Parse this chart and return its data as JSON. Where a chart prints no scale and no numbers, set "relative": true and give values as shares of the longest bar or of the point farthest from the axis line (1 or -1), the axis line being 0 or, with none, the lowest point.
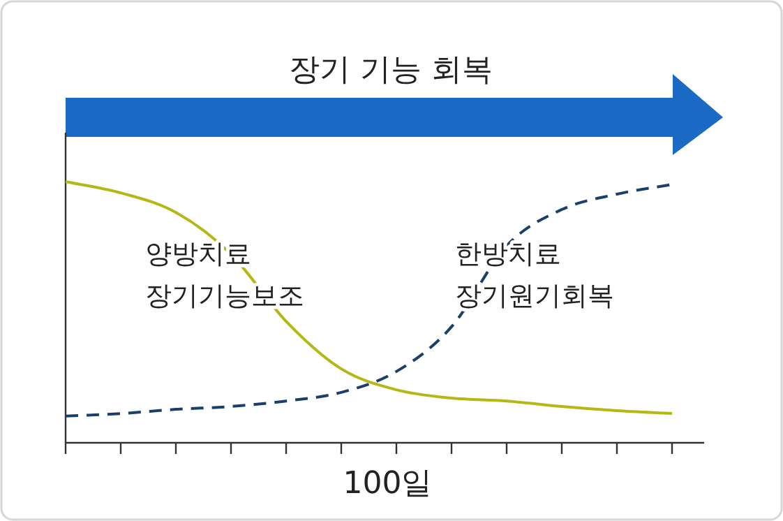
{
  "chart_data": {
    "type": "line",
    "title": "장기 기능 회복",
    "relative": true,
    "categories": [
      null,
      null,
      null,
      null,
      null,
      null,
      null,
      null,
      null,
      null,
      null,
      null
    ],
    "annotations": [
      "100일"
    ],
    "series": [
      {
        "name": "양방치료\n장기기능보조",
        "color": "#b5b814",
        "line_style": "solid",
        "values": [
          1.0,
          0.957,
          0.882,
          0.722,
          0.465,
          0.283,
          0.203,
          0.171,
          0.16,
          0.139,
          0.123,
          0.112
        ]
      },
      {
        "name": "한방치료\n장기원기회복",
        "color": "#1b3f6b",
        "line_style": "dashed",
        "values": [
          0.102,
          0.112,
          0.128,
          0.139,
          0.16,
          0.193,
          0.273,
          0.444,
          0.754,
          0.893,
          0.952,
          0.989
        ]
      }
    ],
    "marker": "none"
  }
}
